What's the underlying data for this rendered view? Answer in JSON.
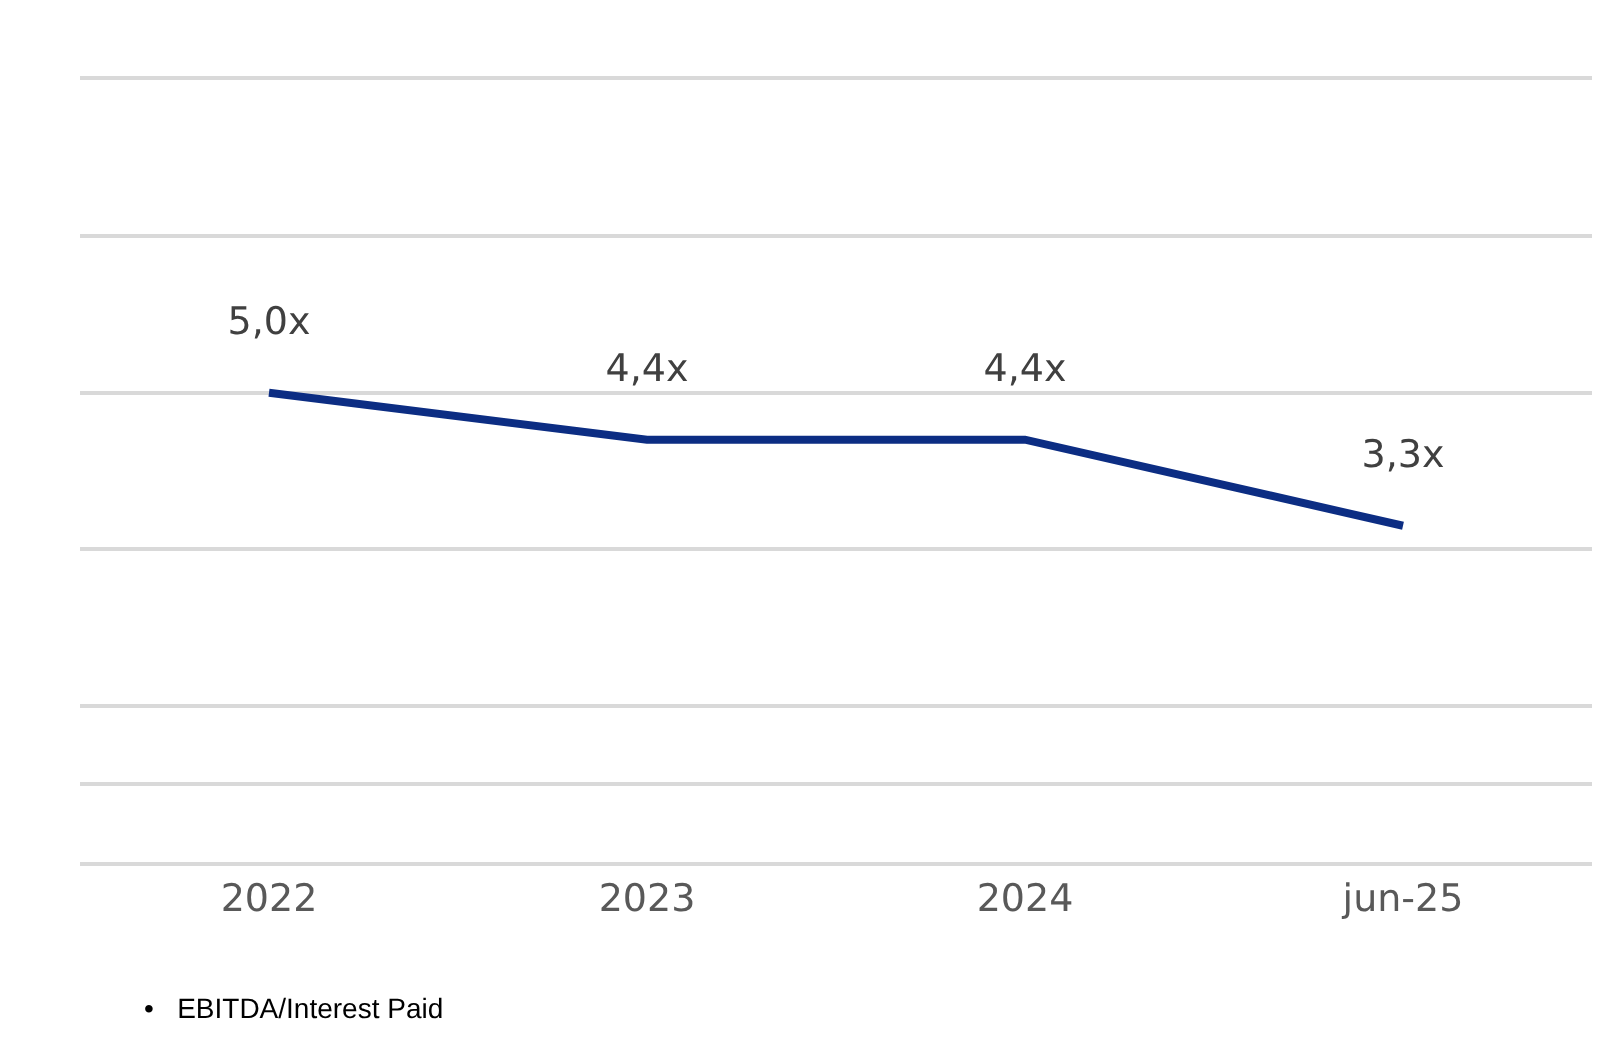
{
  "chart_data": {
    "type": "line",
    "categories": [
      "2022",
      "2023",
      "2024",
      "jun-25"
    ],
    "series": [
      {
        "color": "#0c2d83",
        "values": [
          5.0,
          4.4,
          4.4,
          3.3
        ],
        "value_labels": [
          "5,0x",
          "4,4x",
          "4,4x",
          "3,3x"
        ]
      }
    ],
    "ylim": [
      -1,
      9
    ],
    "yticks": [
      {
        "value": -1,
        "label": null
      },
      {
        "value": 1,
        "label": null
      },
      {
        "value": 3,
        "label": null
      },
      {
        "value": 5,
        "label": null
      },
      {
        "value": 7,
        "label": null
      },
      {
        "value": 9,
        "label": null
      }
    ],
    "grid": "y",
    "tick_labels": "x",
    "marker": "none",
    "line_style": "solid",
    "legend": false,
    "annotations": [
      "•   EBITDA/Interest Paid"
    ]
  }
}
